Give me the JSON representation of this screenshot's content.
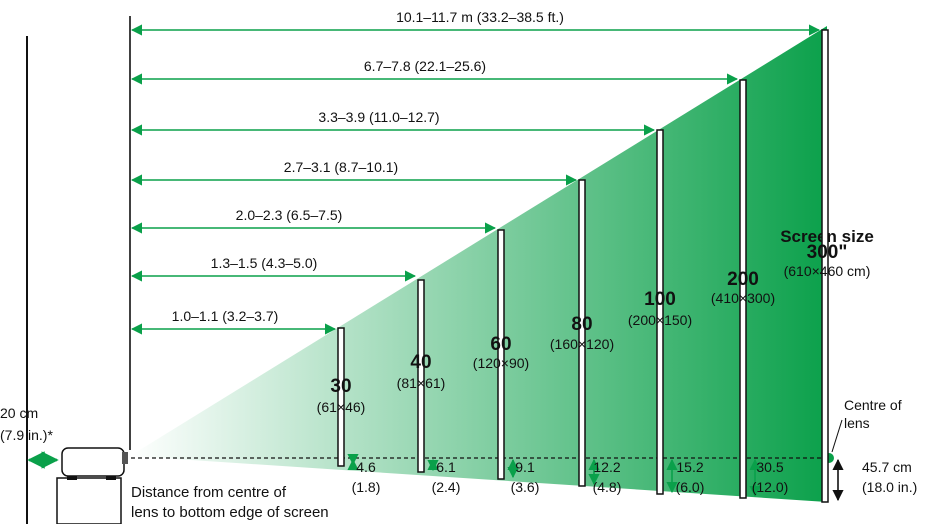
{
  "colors": {
    "beam_light": "#ffffff",
    "beam_dark": "#0aa04a",
    "line": "#111111",
    "arrow": "#0aa04a"
  },
  "projector": {
    "clearance_label_line1": "20 cm",
    "clearance_label_line2": "(7.9 in.)*"
  },
  "lens_note": {
    "line1": "Distance from centre of",
    "line2": "lens to bottom edge of screen"
  },
  "centre_of_lens": {
    "line1": "Centre of",
    "line2": "lens"
  },
  "screen_size_title": "Screen size",
  "screens": [
    {
      "size": "30",
      "dims": "(61×46)",
      "distance": "1.0–1.1 (3.2–3.7)",
      "offset_cm": "4.6",
      "offset_in": "(1.8)"
    },
    {
      "size": "40",
      "dims": "(81×61)",
      "distance": "1.3–1.5 (4.3–5.0)",
      "offset_cm": "6.1",
      "offset_in": "(2.4)"
    },
    {
      "size": "60",
      "dims": "(120×90)",
      "distance": "2.0–2.3 (6.5–7.5)",
      "offset_cm": "9.1",
      "offset_in": "(3.6)"
    },
    {
      "size": "80",
      "dims": "(160×120)",
      "distance": "2.7–3.1 (8.7–10.1)",
      "offset_cm": "12.2",
      "offset_in": "(4.8)"
    },
    {
      "size": "100",
      "dims": "(200×150)",
      "distance": "3.3–3.9 (11.0–12.7)",
      "offset_cm": "15.2",
      "offset_in": "(6.0)"
    },
    {
      "size": "200",
      "dims": "(410×300)",
      "distance": "6.7–7.8 (22.1–25.6)",
      "offset_cm": "30.5",
      "offset_in": "(12.0)"
    },
    {
      "size": "300\"",
      "dims": "(610×460 cm)",
      "distance": "10.1–11.7 m (33.2–38.5 ft.)",
      "offset_cm": "45.7 cm",
      "offset_in": "(18.0 in.)"
    }
  ]
}
